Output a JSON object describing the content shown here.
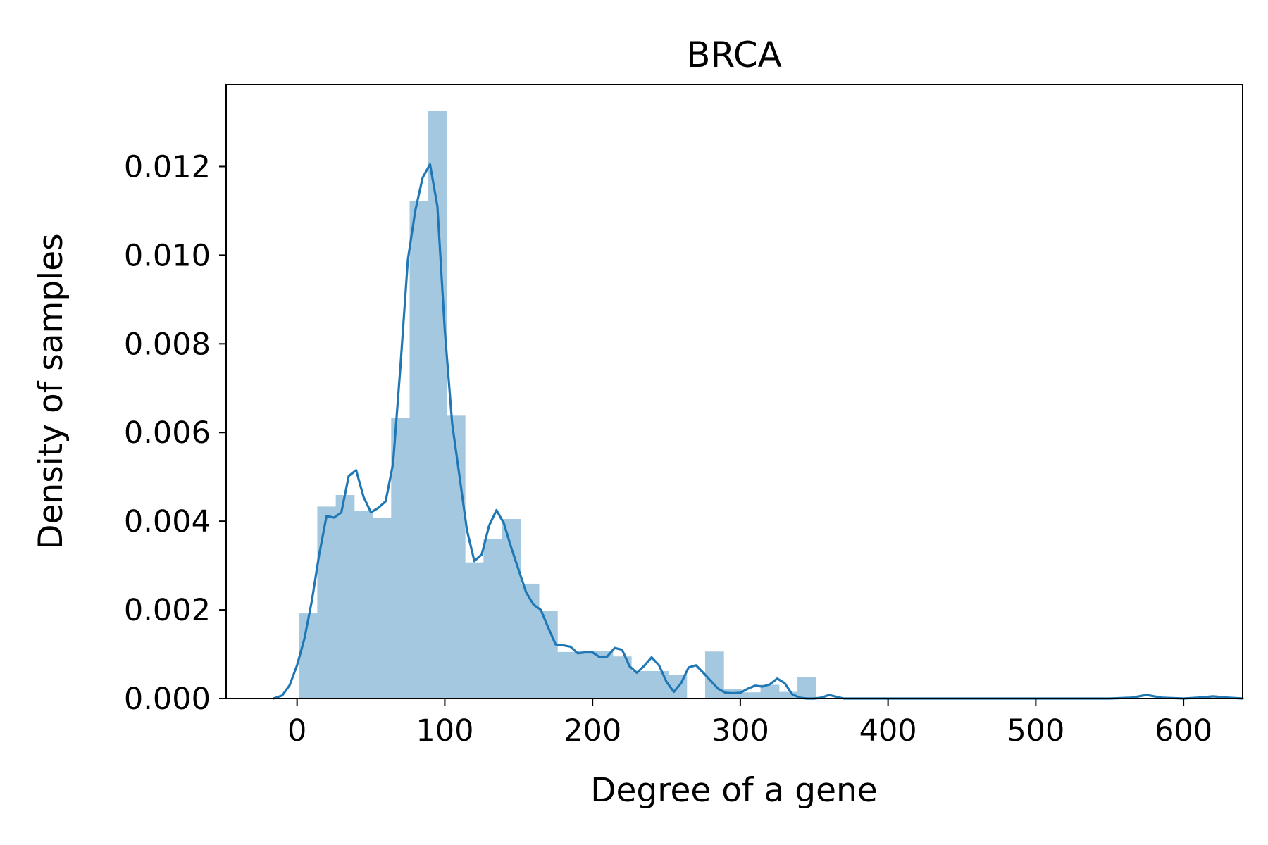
{
  "chart_data": {
    "type": "bar",
    "title": "BRCA",
    "xlabel": "Degree of a gene",
    "ylabel": "Density of samples",
    "xlim": [
      -48,
      640
    ],
    "ylim": [
      0,
      0.01385
    ],
    "xticks": [
      0,
      100,
      200,
      300,
      400,
      500,
      600
    ],
    "yticks": [
      0.0,
      0.002,
      0.004,
      0.006,
      0.008,
      0.01,
      0.012
    ],
    "grid": false,
    "colors": {
      "bars": "#a5c8e1",
      "line": "#1f77b4"
    },
    "histogram": {
      "bin_edges": [
        1.2,
        13.7,
        26.2,
        38.7,
        51.2,
        63.7,
        76.2,
        88.7,
        101.2,
        113.7,
        126.2,
        138.7,
        151.2,
        163.7,
        176.2,
        188.7,
        201.2,
        213.7,
        226.2,
        238.7,
        251.2,
        263.7,
        276.2,
        288.7,
        301.2,
        313.7,
        326.2,
        338.7,
        351.2,
        363.7,
        376.2,
        388.7,
        401.2,
        413.7,
        426.2,
        438.7,
        451.2,
        463.7,
        476.2,
        488.7,
        501.2,
        513.7,
        526.2,
        538.7,
        551.2,
        563.7,
        576.2,
        588.7,
        601.2,
        613.7,
        626.2
      ],
      "densities": [
        0.00192,
        0.00433,
        0.00459,
        0.00423,
        0.00407,
        0.00633,
        0.01123,
        0.01325,
        0.00638,
        0.00307,
        0.00359,
        0.00405,
        0.00259,
        0.00198,
        0.00105,
        0.00108,
        0.00108,
        0.00095,
        0.00062,
        0.00062,
        0.00054,
        0.0,
        0.00106,
        0.00022,
        0.00014,
        0.00031,
        0.00015,
        0.00048,
        0.0,
        0.0,
        0.0,
        0.0,
        0.0,
        0.0,
        0.0,
        0.0,
        0.0,
        0.0,
        0.0,
        0.0,
        0.0,
        0.0,
        0.0,
        0.0,
        0.0,
        0.0,
        0.0,
        0.0,
        0.0,
        0.0
      ]
    },
    "kde": {
      "x": [
        -16,
        -10,
        -5,
        0,
        5,
        10,
        15,
        20,
        25,
        30,
        35,
        40,
        45,
        50,
        55,
        60,
        65,
        70,
        75,
        80,
        85,
        90,
        95,
        100,
        105,
        110,
        115,
        120,
        125,
        130,
        135,
        140,
        145,
        150,
        155,
        160,
        165,
        170,
        175,
        180,
        185,
        190,
        195,
        200,
        205,
        210,
        215,
        220,
        225,
        230,
        235,
        240,
        245,
        250,
        255,
        260,
        265,
        270,
        275,
        280,
        285,
        290,
        295,
        300,
        305,
        310,
        315,
        320,
        325,
        330,
        335,
        340,
        345,
        350,
        355,
        360,
        370,
        380,
        390,
        400,
        420,
        450,
        500,
        550,
        565,
        575,
        585,
        600,
        610,
        620,
        630,
        640
      ],
      "y": [
        0.0,
        7e-05,
        0.0003,
        0.00075,
        0.00135,
        0.0022,
        0.00325,
        0.00412,
        0.00408,
        0.0042,
        0.00502,
        0.00515,
        0.00455,
        0.0042,
        0.0043,
        0.00445,
        0.0053,
        0.0075,
        0.0099,
        0.011,
        0.01175,
        0.01205,
        0.0111,
        0.0083,
        0.0062,
        0.005,
        0.0038,
        0.0031,
        0.00325,
        0.0039,
        0.00425,
        0.00395,
        0.0034,
        0.0029,
        0.0024,
        0.00212,
        0.002,
        0.0016,
        0.00122,
        0.0012,
        0.00117,
        0.00102,
        0.00104,
        0.00104,
        0.00093,
        0.00095,
        0.00114,
        0.0011,
        0.00073,
        0.00058,
        0.00074,
        0.00093,
        0.00075,
        0.00038,
        0.00015,
        0.00035,
        0.0007,
        0.00075,
        0.00058,
        0.0004,
        0.00022,
        0.00013,
        0.00012,
        0.00013,
        0.00022,
        0.00029,
        0.00027,
        0.00032,
        0.00045,
        0.00035,
        0.0001,
        2e-05,
        0.0,
        0.0,
        2e-05,
        8e-05,
        0.0,
        0.0,
        0.0,
        0.0,
        0.0,
        0.0,
        0.0,
        0.0,
        2e-05,
        8e-05,
        2e-05,
        0.0,
        2e-05,
        5e-05,
        2e-05,
        0.0
      ]
    }
  }
}
